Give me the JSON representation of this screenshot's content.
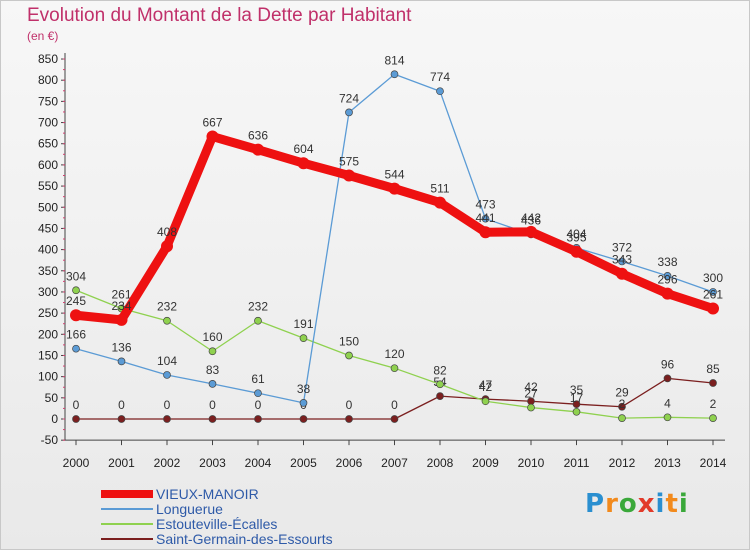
{
  "title": "Evolution du Montant de la Dette par Habitant",
  "subtitle": "(en €)",
  "logo": {
    "letters": [
      "P",
      "r",
      "o",
      "x",
      "i",
      "t",
      "i"
    ],
    "colors": [
      "#2a8fd0",
      "#f28a1c",
      "#3aa83a",
      "#e23a2a",
      "#2a8fd0",
      "#f28a1c",
      "#3aa83a"
    ]
  },
  "chart_data": {
    "type": "line",
    "title": "Evolution du Montant de la Dette par Habitant",
    "subtitle": "(en €)",
    "x": [
      "2000",
      "2001",
      "2002",
      "2003",
      "2004",
      "2005",
      "2006",
      "2007",
      "2008",
      "2009",
      "2010",
      "2011",
      "2012",
      "2013",
      "2014"
    ],
    "ylim": [
      -50,
      850
    ],
    "yticks": [
      -50,
      0,
      50,
      100,
      150,
      200,
      250,
      300,
      350,
      400,
      450,
      500,
      550,
      600,
      650,
      700,
      750,
      800,
      850
    ],
    "grid": false,
    "legend_position": "bottom-left",
    "series": [
      {
        "name": "VIEUX-MANOIR",
        "color": "#ee1111",
        "values": [
          245,
          234,
          408,
          667,
          636,
          604,
          575,
          544,
          511,
          441,
          442,
          395,
          343,
          296,
          261
        ]
      },
      {
        "name": "Longuerue",
        "color": "#5b9bd5",
        "values": [
          166,
          136,
          104,
          83,
          61,
          38,
          724,
          814,
          774,
          473,
          436,
          404,
          372,
          338,
          300
        ]
      },
      {
        "name": "Estouteville-Écalles",
        "color": "#8fd14f",
        "values": [
          304,
          261,
          232,
          160,
          232,
          191,
          150,
          120,
          82,
          42,
          27,
          17,
          2,
          4,
          2
        ]
      },
      {
        "name": "Saint-Germain-des-Essourts",
        "color": "#7b1f1f",
        "values": [
          0,
          0,
          0,
          0,
          0,
          0,
          0,
          0,
          54,
          47,
          42,
          35,
          29,
          96,
          85
        ]
      }
    ],
    "data_labels": [
      [
        "245",
        "234",
        "408",
        "667",
        "636",
        "604",
        "575",
        "544",
        "511",
        "441",
        "442",
        "395",
        "343",
        "296",
        "261"
      ],
      [
        "166",
        "136",
        "104",
        "83",
        "61",
        "38",
        "724",
        "814",
        "774",
        "473",
        "436",
        "404",
        "372",
        "338",
        "300"
      ],
      [
        "304",
        "261",
        "232",
        "160",
        "232",
        "191",
        "150",
        "120",
        "82",
        "42",
        "27",
        "17",
        "2",
        "4",
        "2"
      ],
      [
        "0",
        "0",
        "0",
        "0",
        "0",
        "0",
        "0",
        "0",
        "54",
        "47",
        "42",
        "35",
        "29",
        "96",
        "85"
      ]
    ]
  }
}
